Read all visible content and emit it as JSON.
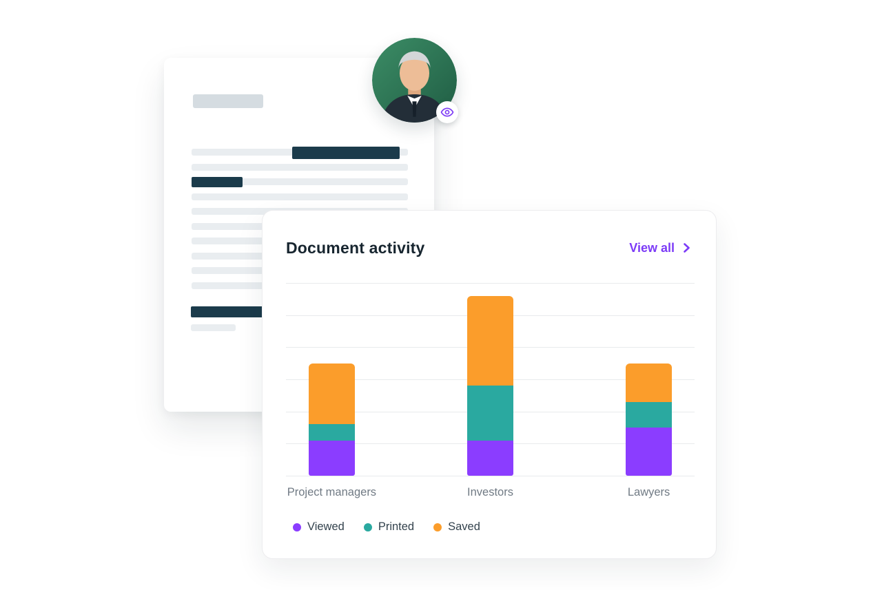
{
  "document_preview": {
    "description": "document skeleton placeholder",
    "highlight_color": "#1b3b4b",
    "line_color": "#e9edf0"
  },
  "avatar": {
    "label": "user avatar",
    "badge_icon": "eye-icon",
    "badge_color": "#7d3bf5",
    "background_color": "#2f7f5c"
  },
  "activity_card": {
    "title": "Document activity",
    "view_all_label": "View all",
    "accent_color": "#7c3bf7"
  },
  "chart_data": {
    "type": "bar",
    "stacked": true,
    "title": "Document activity",
    "categories": [
      "Project managers",
      "Investors",
      "Lawyers"
    ],
    "series": [
      {
        "name": "Viewed",
        "color": "#8b3dff",
        "values": [
          11,
          11,
          15
        ]
      },
      {
        "name": "Printed",
        "color": "#2aa9a0",
        "values": [
          5,
          17,
          8
        ]
      },
      {
        "name": "Saved",
        "color": "#fb9d2b",
        "values": [
          19,
          28,
          12
        ]
      }
    ],
    "ylim": [
      0,
      60
    ],
    "ytick_step": 10,
    "grid": true,
    "tick_labels_shown": false,
    "xlabel": "",
    "ylabel": "",
    "legend_position": "bottom"
  }
}
